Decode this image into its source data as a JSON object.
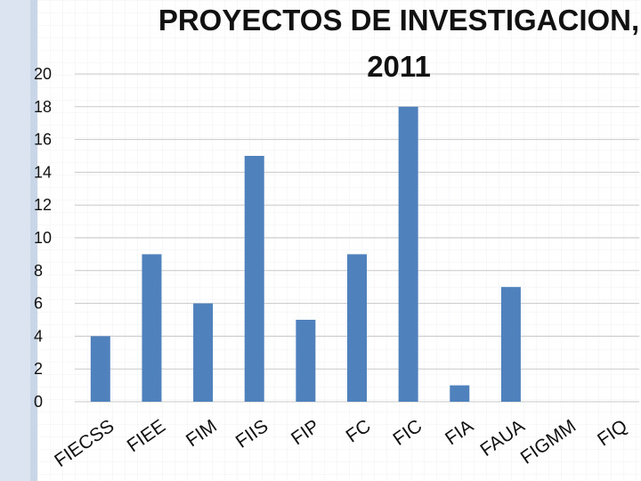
{
  "chart_data": {
    "type": "bar",
    "title_lines": [
      "PROYECTOS DE INVESTIGACION,",
      "2011"
    ],
    "categories": [
      "FIECSS",
      "FIEE",
      "FIM",
      "FIIS",
      "FIP",
      "FC",
      "FIC",
      "FIA",
      "FAUA",
      "FIGMM",
      "FIQ"
    ],
    "values": [
      4,
      9,
      6,
      15,
      5,
      9,
      18,
      1,
      7,
      0,
      0
    ],
    "ylim": [
      0,
      20
    ],
    "yticks": [
      0,
      2,
      4,
      6,
      8,
      10,
      12,
      14,
      16,
      18,
      20
    ],
    "grid": true,
    "bar_color": "#4f81bd",
    "grid_color": "#c8c8c8"
  }
}
